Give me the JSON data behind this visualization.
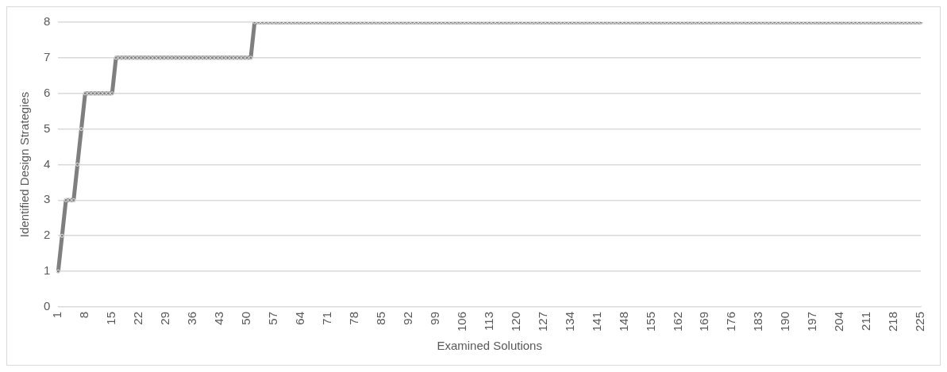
{
  "chart_data": {
    "type": "line",
    "xlabel": "Examined Solutions",
    "ylabel": "Identified Design Strategies",
    "categories": [
      "1",
      null,
      null,
      null,
      null,
      null,
      null,
      "8",
      null,
      null,
      null,
      null,
      null,
      null,
      "15",
      null,
      null,
      null,
      null,
      null,
      null,
      "22",
      null,
      null,
      null,
      null,
      null,
      null,
      "29",
      null,
      null,
      null,
      null,
      null,
      null,
      "36",
      null,
      null,
      null,
      null,
      null,
      null,
      "43",
      null,
      null,
      null,
      null,
      null,
      null,
      "50",
      null,
      null,
      null,
      null,
      null,
      null,
      "57",
      null,
      null,
      null,
      null,
      null,
      null,
      "64",
      null,
      null,
      null,
      null,
      null,
      null,
      "71",
      null,
      null,
      null,
      null,
      null,
      null,
      "78",
      null,
      null,
      null,
      null,
      null,
      null,
      "85",
      null,
      null,
      null,
      null,
      null,
      null,
      "92",
      null,
      null,
      null,
      null,
      null,
      null,
      "99",
      null,
      null,
      null,
      null,
      null,
      null,
      "106",
      null,
      null,
      null,
      null,
      null,
      null,
      "113",
      null,
      null,
      null,
      null,
      null,
      null,
      "120",
      null,
      null,
      null,
      null,
      null,
      null,
      "127",
      null,
      null,
      null,
      null,
      null,
      null,
      "134",
      null,
      null,
      null,
      null,
      null,
      null,
      "141",
      null,
      null,
      null,
      null,
      null,
      null,
      "148",
      null,
      null,
      null,
      null,
      null,
      null,
      "155",
      null,
      null,
      null,
      null,
      null,
      null,
      "162",
      null,
      null,
      null,
      null,
      null,
      null,
      "169",
      null,
      null,
      null,
      null,
      null,
      null,
      "176",
      null,
      null,
      null,
      null,
      null,
      null,
      "183",
      null,
      null,
      null,
      null,
      null,
      null,
      "190",
      null,
      null,
      null,
      null,
      null,
      null,
      "197",
      null,
      null,
      null,
      null,
      null,
      null,
      "204",
      null,
      null,
      null,
      null,
      null,
      null,
      "211",
      null,
      null,
      null,
      null,
      null,
      null,
      "218",
      null,
      null,
      null,
      null,
      null,
      null,
      "225"
    ],
    "series": [
      {
        "color": "#7f7f7f",
        "values": [
          1,
          2,
          3,
          3,
          3,
          4,
          5,
          6,
          6,
          6,
          6,
          6,
          6,
          6,
          6,
          7,
          7,
          7,
          7,
          7,
          7,
          7,
          7,
          7,
          7,
          7,
          7,
          7,
          7,
          7,
          7,
          7,
          7,
          7,
          7,
          7,
          7,
          7,
          7,
          7,
          7,
          7,
          7,
          7,
          7,
          7,
          7,
          7,
          7,
          7,
          7,
          8,
          8,
          8,
          8,
          8,
          8,
          8,
          8,
          8,
          8,
          8,
          8,
          8,
          8,
          8,
          8,
          8,
          8,
          8,
          8,
          8,
          8,
          8,
          8,
          8,
          8,
          8,
          8,
          8,
          8,
          8,
          8,
          8,
          8,
          8,
          8,
          8,
          8,
          8,
          8,
          8,
          8,
          8,
          8,
          8,
          8,
          8,
          8,
          8,
          8,
          8,
          8,
          8,
          8,
          8,
          8,
          8,
          8,
          8,
          8,
          8,
          8,
          8,
          8,
          8,
          8,
          8,
          8,
          8,
          8,
          8,
          8,
          8,
          8,
          8,
          8,
          8,
          8,
          8,
          8,
          8,
          8,
          8,
          8,
          8,
          8,
          8,
          8,
          8,
          8,
          8,
          8,
          8,
          8,
          8,
          8,
          8,
          8,
          8,
          8,
          8,
          8,
          8,
          8,
          8,
          8,
          8,
          8,
          8,
          8,
          8,
          8,
          8,
          8,
          8,
          8,
          8,
          8,
          8,
          8,
          8,
          8,
          8,
          8,
          8,
          8,
          8,
          8,
          8,
          8,
          8,
          8,
          8,
          8,
          8,
          8,
          8,
          8,
          8,
          8,
          8,
          8,
          8,
          8,
          8,
          8,
          8,
          8,
          8,
          8,
          8,
          8,
          8,
          8,
          8,
          8,
          8,
          8,
          8,
          8,
          8,
          8,
          8,
          8,
          8,
          8,
          8,
          8,
          8,
          8,
          8,
          8,
          8,
          8
        ]
      }
    ],
    "ylim": [
      0,
      8
    ],
    "yticks": [
      0,
      1,
      2,
      3,
      4,
      5,
      6,
      7,
      8
    ],
    "grid": "y",
    "legend": false,
    "marker": "circle",
    "line_style": "solid"
  }
}
